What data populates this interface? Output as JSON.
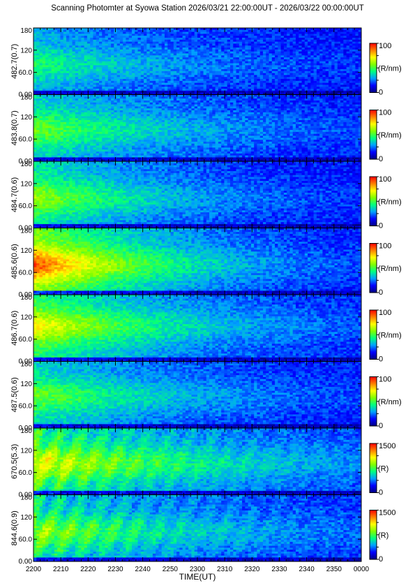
{
  "title": "Scanning Photomter at Syowa Station 2026/03/21 22:00:00UT - 2026/03/22 00:00:00UT",
  "chart_data": {
    "type": "heatmap",
    "xlabel": "TIME(UT)",
    "x_ticks": [
      "2200",
      "2210",
      "2220",
      "2230",
      "2240",
      "2250",
      "2300",
      "2310",
      "2320",
      "2330",
      "2340",
      "2350",
      "0000"
    ],
    "y_ticks": [
      "0.00",
      "60.0",
      "120",
      "180"
    ],
    "ylim": [
      0,
      180
    ],
    "colorscale": [
      "#000080",
      "#0000ff",
      "#00a0ff",
      "#00ff80",
      "#80ff00",
      "#ffff00",
      "#ff8000",
      "#ff0000"
    ],
    "panels": [
      {
        "label": "482.7(0.7)",
        "unit": "(R/nm)",
        "cmin": "0",
        "cmax": "100",
        "peak": 0.45,
        "center": 80,
        "decay": 0.6,
        "stripes": false
      },
      {
        "label": "483.8(0.7)",
        "unit": "(R/nm)",
        "cmin": "0",
        "cmax": "100",
        "peak": 0.55,
        "center": 85,
        "decay": 0.6,
        "stripes": false
      },
      {
        "label": "484.7(0.6)",
        "unit": "(R/nm)",
        "cmin": "0",
        "cmax": "100",
        "peak": 0.6,
        "center": 80,
        "decay": 0.5,
        "stripes": false
      },
      {
        "label": "485.6(0.6)",
        "unit": "(R/nm)",
        "cmin": "0",
        "cmax": "100",
        "peak": 0.92,
        "center": 80,
        "decay": 0.45,
        "stripes": false
      },
      {
        "label": "486.7(0.6)",
        "unit": "(R/nm)",
        "cmin": "0",
        "cmax": "100",
        "peak": 0.72,
        "center": 95,
        "decay": 0.55,
        "stripes": false
      },
      {
        "label": "487.5(0.6)",
        "unit": "(R/nm)",
        "cmin": "0",
        "cmax": "100",
        "peak": 0.55,
        "center": 85,
        "decay": 0.6,
        "stripes": false
      },
      {
        "label": "670.5(5.3)",
        "unit": "(R)",
        "cmin": "0",
        "cmax": "1500",
        "peak": 0.7,
        "center": 85,
        "decay": 0.75,
        "stripes": true
      },
      {
        "label": "844.6(0.9)",
        "unit": "(R)",
        "cmin": "0",
        "cmax": "1500",
        "peak": 0.6,
        "center": 80,
        "decay": 0.7,
        "stripes": true
      }
    ]
  }
}
